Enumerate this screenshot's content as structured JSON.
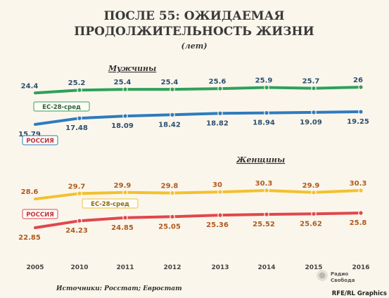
{
  "title_line1": "ПОСЛЕ 55: ОЖИДАЕМАЯ",
  "title_line2": "ПРОДОЛЖИТЕЛЬНОСТЬ ЖИЗНИ",
  "subtitle": "(лет)",
  "source": "Источники: Росстат; Евростат",
  "logo": {
    "line1": "Радио",
    "line2": "Свобода"
  },
  "credit": "RFE/RL Graphics",
  "colors": {
    "eu_men": "#2ea15a",
    "russia_men": "#2d7bbf",
    "eu_women": "#f2c12e",
    "russia_women": "#e0474c",
    "eu_women_label": "#b05a1e",
    "russia_women_label": "#b05a1e",
    "eu_men_label": "#2d4f6e",
    "russia_men_label": "#2d4f6e"
  },
  "chart_data": {
    "type": "line",
    "categories": [
      "2005",
      "2010",
      "2011",
      "2012",
      "2013",
      "2014",
      "2015",
      "2016"
    ],
    "panels": [
      {
        "title": "Мужчины",
        "series": [
          {
            "name": "ЕС-28-сред",
            "color_key": "eu_men",
            "values": [
              24.4,
              25.2,
              25.4,
              25.4,
              25.6,
              25.9,
              25.7,
              26
            ]
          },
          {
            "name": "РОССИЯ",
            "color_key": "russia_men",
            "values": [
              15.79,
              17.48,
              18.09,
              18.42,
              18.82,
              18.94,
              19.09,
              19.25
            ]
          }
        ]
      },
      {
        "title": "Женщины",
        "series": [
          {
            "name": "ЕС-28-сред",
            "color_key": "eu_women",
            "values": [
              28.6,
              29.7,
              29.9,
              29.8,
              30,
              30.3,
              29.9,
              30.3
            ]
          },
          {
            "name": "РОССИЯ",
            "color_key": "russia_women",
            "values": [
              22.85,
              24.23,
              24.85,
              25.05,
              25.36,
              25.52,
              25.62,
              25.8
            ]
          }
        ]
      }
    ]
  }
}
